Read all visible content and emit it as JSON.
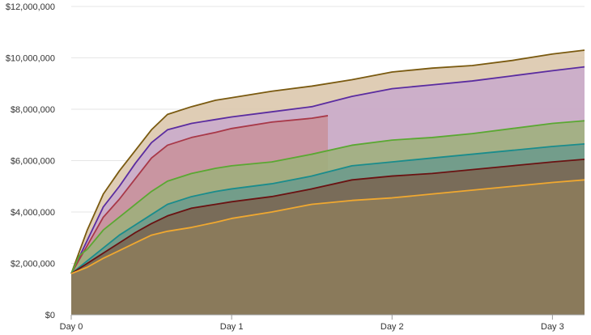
{
  "chart_data": {
    "type": "area",
    "title": "",
    "xlabel": "",
    "ylabel": "",
    "x_ticks": [
      {
        "label": "Day 0",
        "value": 0
      },
      {
        "label": "Day 1",
        "value": 1
      },
      {
        "label": "Day 2",
        "value": 2
      },
      {
        "label": "Day 3",
        "value": 3
      }
    ],
    "y_ticks": [
      {
        "label": "$0",
        "value": 0
      },
      {
        "label": "$2,000,000",
        "value": 2000000
      },
      {
        "label": "$4,000,000",
        "value": 4000000
      },
      {
        "label": "$6,000,000",
        "value": 6000000
      },
      {
        "label": "$8,000,000",
        "value": 8000000
      },
      {
        "label": "$10,000,000",
        "value": 10000000
      },
      {
        "label": "$12,000,000",
        "value": 12000000
      }
    ],
    "xlim": [
      0,
      3.2
    ],
    "ylim": [
      0,
      12000000
    ],
    "grid": true,
    "legend": "none",
    "series": [
      {
        "color": "#7a5a10",
        "fill": "#d9c4a8",
        "points": [
          [
            0,
            1600000
          ],
          [
            0.1,
            3300000
          ],
          [
            0.2,
            4700000
          ],
          [
            0.3,
            5600000
          ],
          [
            0.4,
            6400000
          ],
          [
            0.5,
            7200000
          ],
          [
            0.6,
            7800000
          ],
          [
            0.75,
            8100000
          ],
          [
            0.9,
            8350000
          ],
          [
            1.0,
            8450000
          ],
          [
            1.25,
            8700000
          ],
          [
            1.5,
            8900000
          ],
          [
            1.75,
            9150000
          ],
          [
            2.0,
            9450000
          ],
          [
            2.25,
            9600000
          ],
          [
            2.5,
            9700000
          ],
          [
            2.75,
            9900000
          ],
          [
            3.0,
            10150000
          ],
          [
            3.2,
            10300000
          ]
        ]
      },
      {
        "color": "#5a2ca0",
        "fill": "#c9a9cc",
        "points": [
          [
            0,
            1600000
          ],
          [
            0.1,
            2900000
          ],
          [
            0.2,
            4200000
          ],
          [
            0.3,
            5000000
          ],
          [
            0.4,
            5900000
          ],
          [
            0.5,
            6700000
          ],
          [
            0.6,
            7200000
          ],
          [
            0.75,
            7450000
          ],
          [
            0.9,
            7600000
          ],
          [
            1.0,
            7700000
          ],
          [
            1.25,
            7900000
          ],
          [
            1.5,
            8100000
          ],
          [
            1.75,
            8500000
          ],
          [
            2.0,
            8800000
          ],
          [
            2.25,
            8950000
          ],
          [
            2.5,
            9100000
          ],
          [
            2.75,
            9300000
          ],
          [
            3.0,
            9500000
          ],
          [
            3.2,
            9650000
          ]
        ]
      },
      {
        "color": "#a83848",
        "fill": "#c8909a",
        "points": [
          [
            0,
            1600000
          ],
          [
            0.1,
            2700000
          ],
          [
            0.2,
            3800000
          ],
          [
            0.3,
            4500000
          ],
          [
            0.4,
            5300000
          ],
          [
            0.5,
            6100000
          ],
          [
            0.6,
            6600000
          ],
          [
            0.75,
            6900000
          ],
          [
            0.9,
            7100000
          ],
          [
            1.0,
            7250000
          ],
          [
            1.25,
            7500000
          ],
          [
            1.5,
            7650000
          ],
          [
            1.6,
            7750000
          ]
        ]
      },
      {
        "color": "#5aa832",
        "fill": "#9cb07a",
        "points": [
          [
            0,
            1600000
          ],
          [
            0.05,
            2300000
          ],
          [
            0.1,
            2550000
          ],
          [
            0.2,
            3300000
          ],
          [
            0.3,
            3800000
          ],
          [
            0.4,
            4300000
          ],
          [
            0.5,
            4800000
          ],
          [
            0.6,
            5200000
          ],
          [
            0.75,
            5500000
          ],
          [
            0.9,
            5700000
          ],
          [
            1.0,
            5800000
          ],
          [
            1.25,
            5950000
          ],
          [
            1.5,
            6250000
          ],
          [
            1.75,
            6600000
          ],
          [
            2.0,
            6800000
          ],
          [
            2.25,
            6900000
          ],
          [
            2.5,
            7050000
          ],
          [
            2.75,
            7250000
          ],
          [
            3.0,
            7450000
          ],
          [
            3.2,
            7550000
          ]
        ]
      },
      {
        "color": "#1a8c8c",
        "fill": "#6b9a8c",
        "points": [
          [
            0,
            1600000
          ],
          [
            0.1,
            2100000
          ],
          [
            0.2,
            2600000
          ],
          [
            0.3,
            3100000
          ],
          [
            0.4,
            3500000
          ],
          [
            0.5,
            3900000
          ],
          [
            0.6,
            4300000
          ],
          [
            0.75,
            4600000
          ],
          [
            0.9,
            4800000
          ],
          [
            1.0,
            4900000
          ],
          [
            1.25,
            5100000
          ],
          [
            1.5,
            5400000
          ],
          [
            1.75,
            5800000
          ],
          [
            2.0,
            5950000
          ],
          [
            2.25,
            6100000
          ],
          [
            2.5,
            6250000
          ],
          [
            2.75,
            6400000
          ],
          [
            3.0,
            6550000
          ],
          [
            3.2,
            6650000
          ]
        ]
      },
      {
        "color": "#6a1212",
        "fill": "#7a6450",
        "points": [
          [
            0,
            1600000
          ],
          [
            0.1,
            2000000
          ],
          [
            0.2,
            2400000
          ],
          [
            0.3,
            2800000
          ],
          [
            0.4,
            3200000
          ],
          [
            0.5,
            3550000
          ],
          [
            0.6,
            3850000
          ],
          [
            0.75,
            4150000
          ],
          [
            0.9,
            4300000
          ],
          [
            1.0,
            4400000
          ],
          [
            1.25,
            4600000
          ],
          [
            1.5,
            4900000
          ],
          [
            1.75,
            5250000
          ],
          [
            2.0,
            5400000
          ],
          [
            2.25,
            5500000
          ],
          [
            2.5,
            5650000
          ],
          [
            2.75,
            5800000
          ],
          [
            3.0,
            5950000
          ],
          [
            3.2,
            6050000
          ]
        ]
      },
      {
        "color": "#f0a830",
        "fill": "#8d7c5c",
        "points": [
          [
            0,
            1600000
          ],
          [
            0.1,
            1850000
          ],
          [
            0.2,
            2200000
          ],
          [
            0.3,
            2500000
          ],
          [
            0.4,
            2800000
          ],
          [
            0.5,
            3100000
          ],
          [
            0.6,
            3250000
          ],
          [
            0.75,
            3400000
          ],
          [
            0.9,
            3600000
          ],
          [
            1.0,
            3750000
          ],
          [
            1.25,
            4000000
          ],
          [
            1.5,
            4300000
          ],
          [
            1.75,
            4450000
          ],
          [
            2.0,
            4550000
          ],
          [
            2.25,
            4700000
          ],
          [
            2.5,
            4850000
          ],
          [
            2.75,
            5000000
          ],
          [
            3.0,
            5150000
          ],
          [
            3.2,
            5250000
          ]
        ]
      }
    ]
  }
}
